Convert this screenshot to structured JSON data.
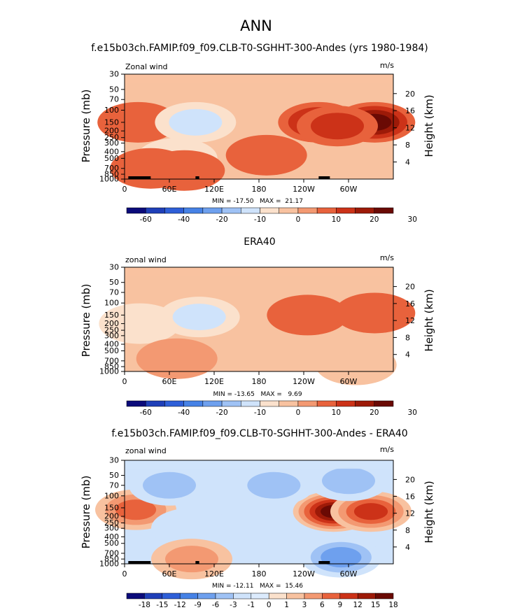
{
  "main_title": "ANN",
  "colors": {
    "abs": [
      "#0b0b7a",
      "#1f3fb8",
      "#2e5fd8",
      "#4682e6",
      "#6ea0ee",
      "#9fc2f5",
      "#cfe3fb",
      "#fbe1cc",
      "#f8c2a0",
      "#f39972",
      "#e8623c",
      "#cc3218",
      "#9d1a08",
      "#6a0a04"
    ],
    "diff": [
      "#0b0b7a",
      "#1f3fb8",
      "#2e5fd8",
      "#4682e6",
      "#6ea0ee",
      "#9fc2f5",
      "#cfe3fb",
      "#dcebfd",
      "#fbe1cc",
      "#f8c2a0",
      "#f39972",
      "#e8623c",
      "#cc3218",
      "#9d1a08",
      "#6a0a04"
    ]
  },
  "chart_data": [
    {
      "type": "contour",
      "title": "f.e15b03ch.FAMIP.f09_f09.CLB-T0-SGHHT-300-Andes (yrs 1980-1984)",
      "left_label": "Zonal wind",
      "units": "m/s",
      "ylabel": "Pressure (mb)",
      "ylabel_right": "Height (km)",
      "pressure_ticks": [
        "30",
        "50",
        "70",
        "100",
        "150",
        "200",
        "250",
        "300",
        "400",
        "500",
        "700",
        "850",
        "1000"
      ],
      "pressure_values": [
        30,
        50,
        70,
        100,
        150,
        200,
        250,
        300,
        400,
        500,
        700,
        850,
        1000
      ],
      "height_ticks": [
        "20",
        "16",
        "12",
        "8",
        "4"
      ],
      "height_values": [
        20,
        16,
        12,
        8,
        4
      ],
      "lon_ticks": [
        "0",
        "60E",
        "120E",
        "180",
        "120W",
        "60W"
      ],
      "lon_values": [
        0,
        60,
        120,
        180,
        240,
        300
      ],
      "stats": "MIN = -17.50   MAX =  21.17",
      "min": -17.5,
      "max": 21.17,
      "colorbar_labels": [
        "-60",
        "-40",
        "-20",
        "-10",
        "0",
        "10",
        "20",
        "30"
      ],
      "colorbar_levels": [
        -60,
        -50,
        -40,
        -30,
        -20,
        -15,
        -10,
        -5,
        0,
        5,
        10,
        15,
        20,
        25,
        30
      ],
      "features": [
        {
          "lon": 18,
          "p": 150,
          "value": 5
        },
        {
          "lon": 95,
          "p": 150,
          "value": -12
        },
        {
          "lon": 70,
          "p": 500,
          "value": -5
        },
        {
          "lon": 260,
          "p": 150,
          "value": 15
        },
        {
          "lon": 335,
          "p": 150,
          "value": 21
        },
        {
          "lon": 285,
          "p": 170,
          "value": 10
        },
        {
          "lon": 35,
          "p": 700,
          "value": 6
        },
        {
          "lon": 80,
          "p": 750,
          "value": 8
        },
        {
          "lon": 190,
          "p": 450,
          "value": 5
        }
      ]
    },
    {
      "type": "contour",
      "title": "ERA40",
      "left_label": "zonal wind",
      "units": "m/s",
      "ylabel": "Pressure (mb)",
      "ylabel_right": "Height (km)",
      "pressure_ticks": [
        "30",
        "50",
        "70",
        "100",
        "150",
        "200",
        "250",
        "300",
        "400",
        "500",
        "700",
        "850",
        "1000"
      ],
      "pressure_values": [
        30,
        50,
        70,
        100,
        150,
        200,
        250,
        300,
        400,
        500,
        700,
        850,
        1000
      ],
      "height_ticks": [
        "20",
        "16",
        "12",
        "8",
        "4"
      ],
      "height_values": [
        20,
        16,
        12,
        8,
        4
      ],
      "lon_ticks": [
        "0",
        "60E",
        "120E",
        "180",
        "120W",
        "60W"
      ],
      "lon_values": [
        0,
        60,
        120,
        180,
        240,
        300
      ],
      "stats": "MIN = -13.65   MAX =   9.69",
      "min": -13.65,
      "max": 9.69,
      "colorbar_labels": [
        "-60",
        "-40",
        "-20",
        "-10",
        "0",
        "10",
        "20",
        "30"
      ],
      "colorbar_levels": [
        -60,
        -50,
        -40,
        -30,
        -20,
        -15,
        -10,
        -5,
        0,
        5,
        10,
        15,
        20,
        25,
        30
      ],
      "features": [
        {
          "lon": 20,
          "p": 200,
          "value": -5
        },
        {
          "lon": 100,
          "p": 160,
          "value": -10
        },
        {
          "lon": 245,
          "p": 150,
          "value": 9
        },
        {
          "lon": 335,
          "p": 140,
          "value": 8
        },
        {
          "lon": 70,
          "p": 650,
          "value": 3
        },
        {
          "lon": 310,
          "p": 800,
          "value": -4
        }
      ]
    },
    {
      "type": "contour",
      "title": "f.e15b03ch.FAMIP.f09_f09.CLB-T0-SGHHT-300-Andes - ERA40",
      "left_label": "zonal wind",
      "units": "m/s",
      "ylabel": "Pressure (mb)",
      "ylabel_right": "Height (km)",
      "pressure_ticks": [
        "30",
        "50",
        "70",
        "100",
        "150",
        "200",
        "250",
        "300",
        "400",
        "500",
        "700",
        "850",
        "1000"
      ],
      "pressure_values": [
        30,
        50,
        70,
        100,
        150,
        200,
        250,
        300,
        400,
        500,
        700,
        850,
        1000
      ],
      "height_ticks": [
        "20",
        "16",
        "12",
        "8",
        "4"
      ],
      "height_values": [
        20,
        16,
        12,
        8,
        4
      ],
      "lon_ticks": [
        "0",
        "60E",
        "120E",
        "180",
        "120W",
        "60W"
      ],
      "lon_values": [
        0,
        60,
        120,
        180,
        240,
        300
      ],
      "stats": "MIN = -12.11   MAX =  15.46",
      "min": -12.11,
      "max": 15.46,
      "colorbar_labels": [
        "-18",
        "-15",
        "-12",
        "-9",
        "-6",
        "-3",
        "-1",
        "0",
        "1",
        "3",
        "6",
        "9",
        "12",
        "15",
        "18"
      ],
      "colorbar_levels": [
        -18,
        -15,
        -12,
        -9,
        -6,
        -3,
        -1,
        0,
        1,
        3,
        6,
        9,
        12,
        15,
        18
      ],
      "features": [
        {
          "lon": 15,
          "p": 160,
          "value": 6
        },
        {
          "lon": 280,
          "p": 170,
          "value": 15
        },
        {
          "lon": 330,
          "p": 170,
          "value": 10
        },
        {
          "lon": 60,
          "p": 70,
          "value": -4
        },
        {
          "lon": 200,
          "p": 70,
          "value": -4
        },
        {
          "lon": 300,
          "p": 60,
          "value": -4
        },
        {
          "lon": 90,
          "p": 300,
          "value": -2
        },
        {
          "lon": 290,
          "p": 800,
          "value": -8
        },
        {
          "lon": 90,
          "p": 850,
          "value": 3
        }
      ]
    }
  ]
}
